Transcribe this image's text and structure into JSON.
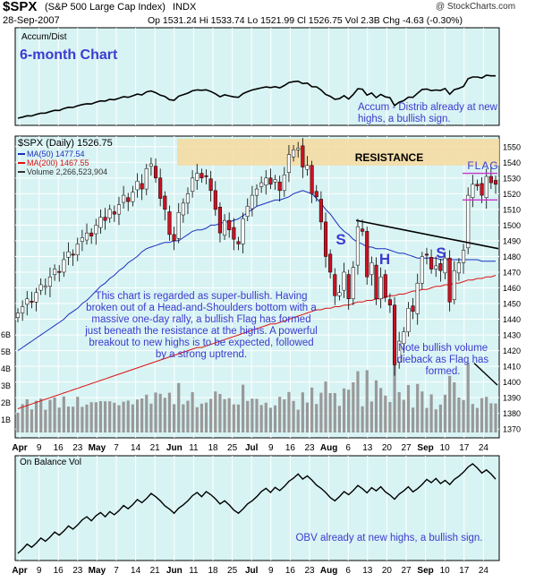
{
  "header": {
    "symbol": "$SPX",
    "name": "(S&P 500 Large Cap Index)",
    "exchange": "INDX",
    "date": "28-Sep-2007",
    "watermark": "@ StockCharts.com",
    "ohlc": "Op 1531.24  Hi 1533.74  Lo 1521.99  Cl 1526.75  Vol 2.3B  Chg -4.63 (-0.30%)"
  },
  "chart_data": [
    {
      "panel": "accum-dist",
      "type": "line",
      "label": "Accum/Dist",
      "title": "6-month Chart",
      "annotation": "Accum - Distrib already at new highs, a bullish sign."
    },
    {
      "panel": "price",
      "type": "candlestick",
      "legend": {
        "main": "$SPX (Daily) 1526.75",
        "ma50": "MA(50) 1477.54",
        "ma200": "MA(200) 1467.55",
        "volume": "Volume 2,266,523,904"
      },
      "ylim": [
        1365,
        1555
      ],
      "y_ticks": [
        1370,
        1380,
        1390,
        1400,
        1410,
        1420,
        1430,
        1440,
        1450,
        1460,
        1470,
        1480,
        1490,
        1500,
        1510,
        1520,
        1530,
        1540,
        1550
      ],
      "volume_ticks": [
        "1B",
        "2B",
        "3B",
        "4B",
        "5B",
        "6B"
      ],
      "resistance_label": "RESISTANCE",
      "resistance_range": [
        1538,
        1555
      ],
      "pattern_labels": {
        "left_shoulder": "S",
        "head": "H",
        "right_shoulder": "S",
        "flag": "FLAG"
      },
      "closes": [
        1444,
        1448,
        1453,
        1451,
        1457,
        1462,
        1461,
        1467,
        1472,
        1470,
        1478,
        1483,
        1481,
        1488,
        1492,
        1495,
        1493,
        1500,
        1505,
        1503,
        1510,
        1507,
        1513,
        1519,
        1515,
        1521,
        1528,
        1523,
        1536,
        1539,
        1530,
        1517,
        1510,
        1494,
        1490,
        1508,
        1514,
        1520,
        1530,
        1533,
        1530,
        1531,
        1522,
        1510,
        1495,
        1503,
        1497,
        1491,
        1488,
        1504,
        1512,
        1519,
        1523,
        1527,
        1530,
        1526,
        1529,
        1522,
        1532,
        1545,
        1548,
        1549,
        1537,
        1538,
        1520,
        1518,
        1502,
        1480,
        1470,
        1455,
        1457,
        1470,
        1453,
        1473,
        1499,
        1496,
        1467,
        1476,
        1453,
        1467,
        1454,
        1449,
        1411,
        1426,
        1432,
        1447,
        1445,
        1463,
        1480,
        1481,
        1472,
        1474,
        1471,
        1479,
        1451,
        1471,
        1476,
        1484,
        1519,
        1526,
        1525,
        1519,
        1531,
        1527,
        1526
      ],
      "ma50": [
        1420,
        1422,
        1424,
        1426,
        1428,
        1430,
        1432,
        1434,
        1436,
        1438,
        1440,
        1443,
        1445,
        1447,
        1450,
        1452,
        1455,
        1458,
        1461,
        1463,
        1466,
        1468,
        1471,
        1473,
        1476,
        1478,
        1480,
        1483,
        1485,
        1486,
        1487,
        1488,
        1489,
        1489,
        1490,
        1490,
        1492,
        1494,
        1496,
        1497,
        1497,
        1498,
        1500,
        1500,
        1501,
        1502,
        1502,
        1503,
        1504,
        1506,
        1508,
        1510,
        1512,
        1513,
        1514,
        1515,
        1516,
        1516,
        1517,
        1518,
        1520,
        1521,
        1522,
        1521,
        1520,
        1517,
        1514,
        1510,
        1507,
        1503,
        1499,
        1496,
        1494,
        1491,
        1489,
        1488,
        1486,
        1486,
        1485,
        1485,
        1485,
        1484,
        1483,
        1482,
        1482,
        1481,
        1480,
        1479,
        1479,
        1479,
        1479,
        1479,
        1478,
        1478,
        1478,
        1478,
        1478,
        1478,
        1478,
        1478,
        1478,
        1477,
        1477,
        1477,
        1477
      ],
      "ma200": [
        1383,
        1384,
        1385,
        1386,
        1387,
        1388,
        1389,
        1390,
        1391,
        1392,
        1393,
        1394,
        1395,
        1396,
        1397,
        1398,
        1399,
        1400,
        1401,
        1402,
        1403,
        1404,
        1405,
        1406,
        1407,
        1408,
        1409,
        1410,
        1411,
        1412,
        1413,
        1414,
        1415,
        1416,
        1417,
        1418,
        1419,
        1420,
        1421,
        1422,
        1422,
        1423,
        1424,
        1425,
        1426,
        1427,
        1428,
        1429,
        1430,
        1431,
        1432,
        1433,
        1434,
        1435,
        1436,
        1437,
        1437,
        1438,
        1439,
        1440,
        1441,
        1442,
        1443,
        1444,
        1445,
        1446,
        1446,
        1447,
        1447,
        1448,
        1448,
        1449,
        1449,
        1450,
        1451,
        1451,
        1452,
        1452,
        1453,
        1453,
        1454,
        1455,
        1455,
        1456,
        1456,
        1457,
        1458,
        1458,
        1459,
        1459,
        1460,
        1461,
        1461,
        1462,
        1462,
        1463,
        1463,
        1464,
        1465,
        1465,
        1466,
        1466,
        1467,
        1467,
        1468
      ],
      "note_main": "This chart is regarded as super-bullish. Having broken out of a Head-and-Shoulders bottom with a massive one-day rally, a bullish Flag has formed just beneath the resistance at the highs. A powerful breakout to new highs is to be expected, followed by a strong uptrend.",
      "note_volume": "Note bullish volume dieback as Flag has formed."
    },
    {
      "panel": "obv",
      "type": "line",
      "label": "On Balance Vol",
      "annotation": "OBV already at new highs, a bullish sign."
    }
  ],
  "x_axis": [
    {
      "label": "Apr",
      "bold": true
    },
    {
      "label": "9",
      "bold": false
    },
    {
      "label": "16",
      "bold": false
    },
    {
      "label": "23",
      "bold": false
    },
    {
      "label": "May",
      "bold": true
    },
    {
      "label": "7",
      "bold": false
    },
    {
      "label": "14",
      "bold": false
    },
    {
      "label": "21",
      "bold": false
    },
    {
      "label": "Jun",
      "bold": true
    },
    {
      "label": "11",
      "bold": false
    },
    {
      "label": "18",
      "bold": false
    },
    {
      "label": "25",
      "bold": false
    },
    {
      "label": "Jul",
      "bold": true
    },
    {
      "label": "9",
      "bold": false
    },
    {
      "label": "16",
      "bold": false
    },
    {
      "label": "23",
      "bold": false
    },
    {
      "label": "Aug",
      "bold": true
    },
    {
      "label": "6",
      "bold": false
    },
    {
      "label": "13",
      "bold": false
    },
    {
      "label": "20",
      "bold": false
    },
    {
      "label": "27",
      "bold": false
    },
    {
      "label": "Sep",
      "bold": true
    },
    {
      "label": "10",
      "bold": false
    },
    {
      "label": "17",
      "bold": false
    },
    {
      "label": "24",
      "bold": false
    }
  ],
  "colors": {
    "panel_bg": "#d8f3f3",
    "grid": "#ffffff",
    "up": "#ffffff",
    "down": "#cc1122",
    "ma50": "#1a2fbf",
    "ma200": "#dd1111",
    "volume": "#999999",
    "note": "#3b3bd0",
    "resistance": "#f5dca3"
  }
}
